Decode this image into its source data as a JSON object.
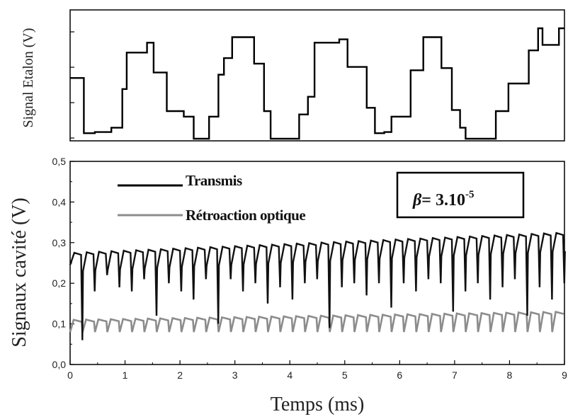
{
  "chart_data": [
    {
      "type": "line",
      "ylabel": "Signal Etalon (V)",
      "xlim": [
        0,
        9
      ],
      "y_tick_labels_shown": false,
      "series": [
        {
          "color": "#000000",
          "x": [
            0,
            0.12,
            0.25,
            0.45,
            0.75,
            0.95,
            1.03,
            1.4,
            1.52,
            1.76,
            2.07,
            2.25,
            2.35,
            2.53,
            2.7,
            2.8,
            2.95,
            3.35,
            3.53,
            3.65,
            4.02,
            4.17,
            4.33,
            4.45,
            4.9,
            5.05,
            5.4,
            5.55,
            5.72,
            5.85,
            6.2,
            6.43,
            6.5,
            6.76,
            6.95,
            7.1,
            7.2,
            7.58,
            7.75,
            7.98,
            8.35,
            8.52,
            8.6,
            8.9,
            9.0
          ],
          "values": [
            0.55,
            0.55,
            0.05,
            0.06,
            0.1,
            0.45,
            0.78,
            0.87,
            0.6,
            0.25,
            0.2,
            0.0,
            0.0,
            0.2,
            0.58,
            0.73,
            0.92,
            0.68,
            0.25,
            0.0,
            0.0,
            0.22,
            0.38,
            0.87,
            0.9,
            0.65,
            0.28,
            0.05,
            0.06,
            0.2,
            0.62,
            0.92,
            0.92,
            0.64,
            0.26,
            0.1,
            0.0,
            0.0,
            0.25,
            0.5,
            0.8,
            1.0,
            0.85,
            1.0,
            1.0
          ]
        }
      ]
    },
    {
      "type": "line",
      "xlabel": "Temps (ms)",
      "ylabel": "Signaux cavité (V)",
      "xlim": [
        0,
        9
      ],
      "ylim": [
        0,
        0.5
      ],
      "x_ticks": [
        "0",
        "1",
        "2",
        "3",
        "4",
        "5",
        "6",
        "7",
        "8",
        "9"
      ],
      "y_ticks": [
        "0,0",
        "0,1",
        "0,2",
        "0,3",
        "0,4",
        "0,5"
      ],
      "annotation": {
        "symbol": "β",
        "text": "= 3.10",
        "superscript": "-5"
      },
      "series": [
        {
          "name": "Transmis",
          "color": "#000000",
          "start_value": 0.275,
          "end_value": 0.325,
          "period_ms": 0.225,
          "dip_min_values": [
            0.06,
            0.18,
            0.22,
            0.19,
            0.18,
            0.21,
            0.12,
            0.2,
            0.18,
            0.16,
            0.21,
            0.1,
            0.21,
            0.18,
            0.2,
            0.15,
            0.19,
            0.16,
            0.2,
            0.21,
            0.09,
            0.19,
            0.2,
            0.17,
            0.2,
            0.14,
            0.2,
            0.18,
            0.21,
            0.2,
            0.13,
            0.18,
            0.2,
            0.16,
            0.19,
            0.21,
            0.12,
            0.19,
            0.16,
            0.2
          ]
        },
        {
          "name": "Rétroaction optique",
          "color": "#8c8c8c",
          "start_value": 0.11,
          "end_value": 0.13,
          "period_ms": 0.225,
          "dip_min_value": 0.08
        }
      ]
    }
  ]
}
